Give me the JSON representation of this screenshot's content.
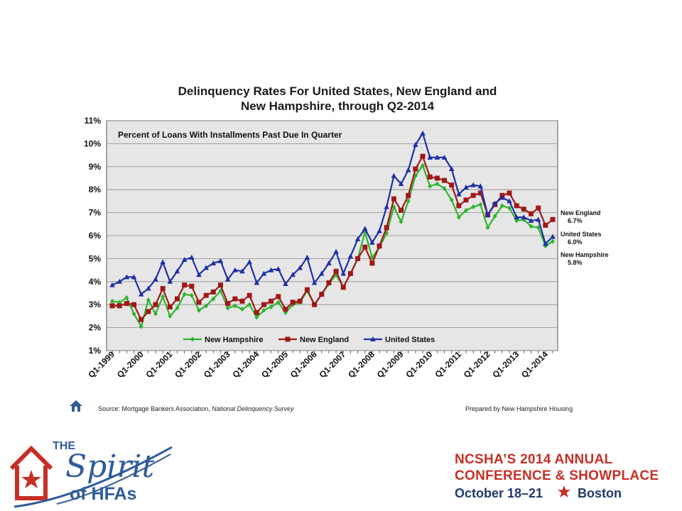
{
  "chart_data": {
    "type": "line",
    "title": "Delinquency Rates For United States, New England and New Hampshire, through Q2-2014",
    "title_lines": [
      "Delinquency Rates For United States, New England and",
      "New Hampshire, through Q2-2014"
    ],
    "subtitle": "Percent of Loans With Installments Past Due In Quarter",
    "xlabel": "",
    "ylabel": "",
    "ylim": [
      1,
      11
    ],
    "y_ticks": [
      "1%",
      "2%",
      "3%",
      "4%",
      "5%",
      "6%",
      "7%",
      "8%",
      "9%",
      "10%",
      "11%"
    ],
    "x_tick_labels": [
      "Q1-1999",
      "Q1-2000",
      "Q1-2001",
      "Q1-2002",
      "Q1-2003",
      "Q1-2004",
      "Q1-2005",
      "Q1-2006",
      "Q1-2007",
      "Q1-2008",
      "Q1-2009",
      "Q1-2010",
      "Q1-2011",
      "Q1-2012",
      "Q1-2013",
      "Q1-2014"
    ],
    "grid": true,
    "legend_position": "bottom-left",
    "background": "#e6e6e6",
    "series": [
      {
        "name": "New Hampshire",
        "color": "#2db52d",
        "marker": "diamond",
        "end_label": "New Hampshire",
        "end_value": "5.8%",
        "values": [
          3.15,
          3.1,
          3.3,
          2.6,
          2.05,
          3.2,
          2.6,
          3.35,
          2.5,
          2.85,
          3.45,
          3.4,
          2.75,
          2.95,
          3.25,
          3.6,
          2.85,
          2.95,
          2.8,
          3.0,
          2.45,
          2.75,
          2.9,
          3.1,
          2.65,
          3.0,
          3.1,
          3.6,
          3.0,
          3.45,
          3.9,
          4.3,
          3.75,
          4.35,
          5.0,
          6.15,
          5.05,
          5.5,
          6.1,
          7.25,
          6.6,
          7.5,
          8.6,
          9.05,
          8.15,
          8.25,
          8.05,
          7.55,
          6.8,
          7.1,
          7.25,
          7.35,
          6.35,
          6.85,
          7.3,
          7.2,
          6.65,
          6.7,
          6.4,
          6.35,
          5.55,
          5.75
        ]
      },
      {
        "name": "New England",
        "color": "#a01818",
        "marker": "square",
        "end_label": "New England",
        "end_value": "6.7%",
        "values": [
          2.95,
          2.95,
          3.05,
          3.0,
          2.35,
          2.7,
          3.0,
          3.7,
          2.9,
          3.25,
          3.85,
          3.8,
          3.1,
          3.4,
          3.55,
          3.85,
          3.05,
          3.25,
          3.15,
          3.4,
          2.65,
          3.0,
          3.15,
          3.35,
          2.8,
          3.1,
          3.15,
          3.65,
          3.0,
          3.45,
          3.95,
          4.45,
          3.75,
          4.35,
          5.0,
          5.5,
          4.8,
          5.55,
          6.35,
          7.6,
          7.1,
          7.75,
          8.9,
          9.45,
          8.55,
          8.5,
          8.4,
          8.2,
          7.3,
          7.55,
          7.75,
          7.85,
          6.9,
          7.35,
          7.75,
          7.85,
          7.3,
          7.15,
          6.95,
          7.2,
          6.45,
          6.7
        ]
      },
      {
        "name": "United States",
        "color": "#1f2fa6",
        "marker": "triangle",
        "end_label": "United States",
        "end_value": "6.0%",
        "values": [
          3.85,
          4.0,
          4.2,
          4.2,
          3.45,
          3.7,
          4.1,
          4.85,
          4.0,
          4.45,
          4.95,
          5.05,
          4.3,
          4.6,
          4.8,
          4.9,
          4.1,
          4.5,
          4.45,
          4.85,
          3.95,
          4.35,
          4.5,
          4.55,
          3.9,
          4.3,
          4.6,
          5.05,
          3.95,
          4.35,
          4.8,
          5.3,
          4.35,
          5.1,
          5.85,
          6.3,
          5.7,
          6.2,
          7.25,
          8.6,
          8.25,
          8.85,
          9.95,
          10.45,
          9.4,
          9.4,
          9.4,
          8.9,
          7.8,
          8.1,
          8.2,
          8.15,
          6.9,
          7.4,
          7.65,
          7.5,
          6.8,
          6.8,
          6.65,
          6.7,
          5.65,
          5.95
        ]
      }
    ]
  },
  "footer": {
    "source_prefix": "Source: Mortgage Bankers Association, ",
    "source_italic": "National Delinquency Survey",
    "prepared_by": "Prepared by New Hampshire Housing"
  },
  "branding": {
    "logo_the": "THE",
    "logo_spirit": "Spirit",
    "logo_hfas": "of HFAs",
    "conference_line1": "NCSHA’S 2014 ANNUAL",
    "conference_line2": "CONFERENCE & SHOWPLACE",
    "conference_dates": "October 18–21",
    "conference_city": "Boston",
    "accent_color": "#c62f26",
    "brand_blue": "#1f3a6e"
  }
}
